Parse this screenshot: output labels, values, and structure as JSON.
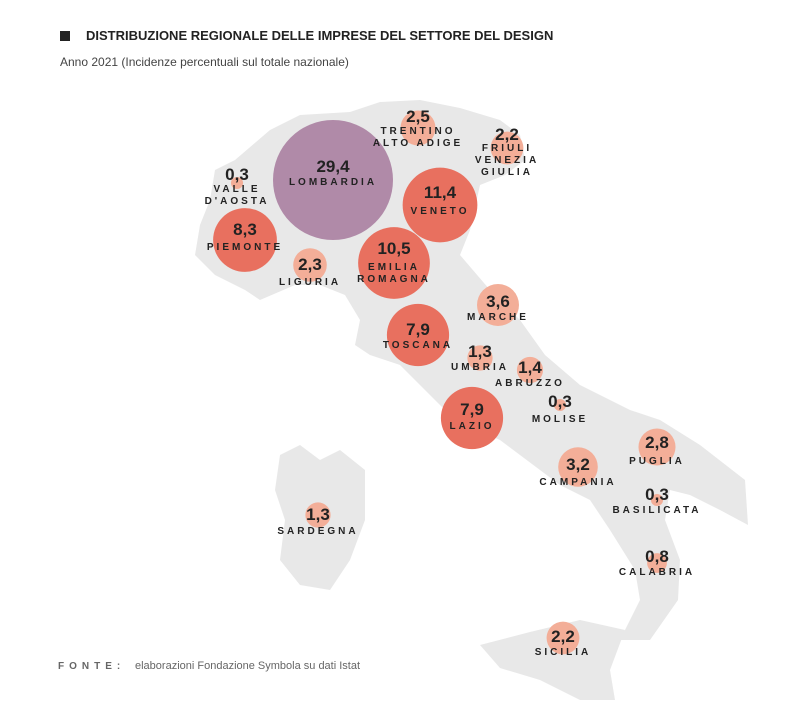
{
  "chart_data": {
    "type": "bubble-map",
    "title": "DISTRIBUZIONE REGIONALE DELLE IMPRESE DEL SETTORE DEL DESIGN",
    "subtitle": "Anno 2021 (Incidenze percentuali sul totale nazionale)",
    "source_label": "FONTE:",
    "source": "elaborazioni Fondazione Symbola su dati Istat",
    "categories": [
      "LOMBARDIA",
      "VENETO",
      "TRENTINO\nALTO ADIGE",
      "FRIULI\nVENEZIA\nGIULIA",
      "VALLE\nD'AOSTA",
      "PIEMONTE",
      "LIGURIA",
      "EMILIA\nROMAGNA",
      "MARCHE",
      "TOSCANA",
      "UMBRIA",
      "ABRUZZO",
      "MOLISE",
      "LAZIO",
      "PUGLIA",
      "CAMPANIA",
      "BASILICATA",
      "CALABRIA",
      "SARDEGNA",
      "SICILIA"
    ],
    "values": [
      29.4,
      11.4,
      2.5,
      2.2,
      0.3,
      8.3,
      2.3,
      10.5,
      3.6,
      7.9,
      1.3,
      1.4,
      0.3,
      7.9,
      2.8,
      3.2,
      0.3,
      0.8,
      1.3,
      2.2
    ],
    "value_labels": [
      "29,4",
      "11,4",
      "2,5",
      "2,2",
      "0,3",
      "8,3",
      "2,3",
      "10,5",
      "3,6",
      "7,9",
      "1,3",
      "1,4",
      "0,3",
      "7,9",
      "2,8",
      "3,2",
      "0,3",
      "0,8",
      "1,3",
      "2,2"
    ],
    "colors": [
      "#b08aa8",
      "#e8705f",
      "#f3ae98",
      "#f3ae98",
      "#f3ae98",
      "#e8705f",
      "#f3ae98",
      "#e8705f",
      "#f3ae98",
      "#e8705f",
      "#f3ae98",
      "#f3ae98",
      "#f3ae98",
      "#e8705f",
      "#f3ae98",
      "#f3ae98",
      "#f3ae98",
      "#f3ae98",
      "#f3ae98",
      "#f3ae98"
    ]
  }
}
